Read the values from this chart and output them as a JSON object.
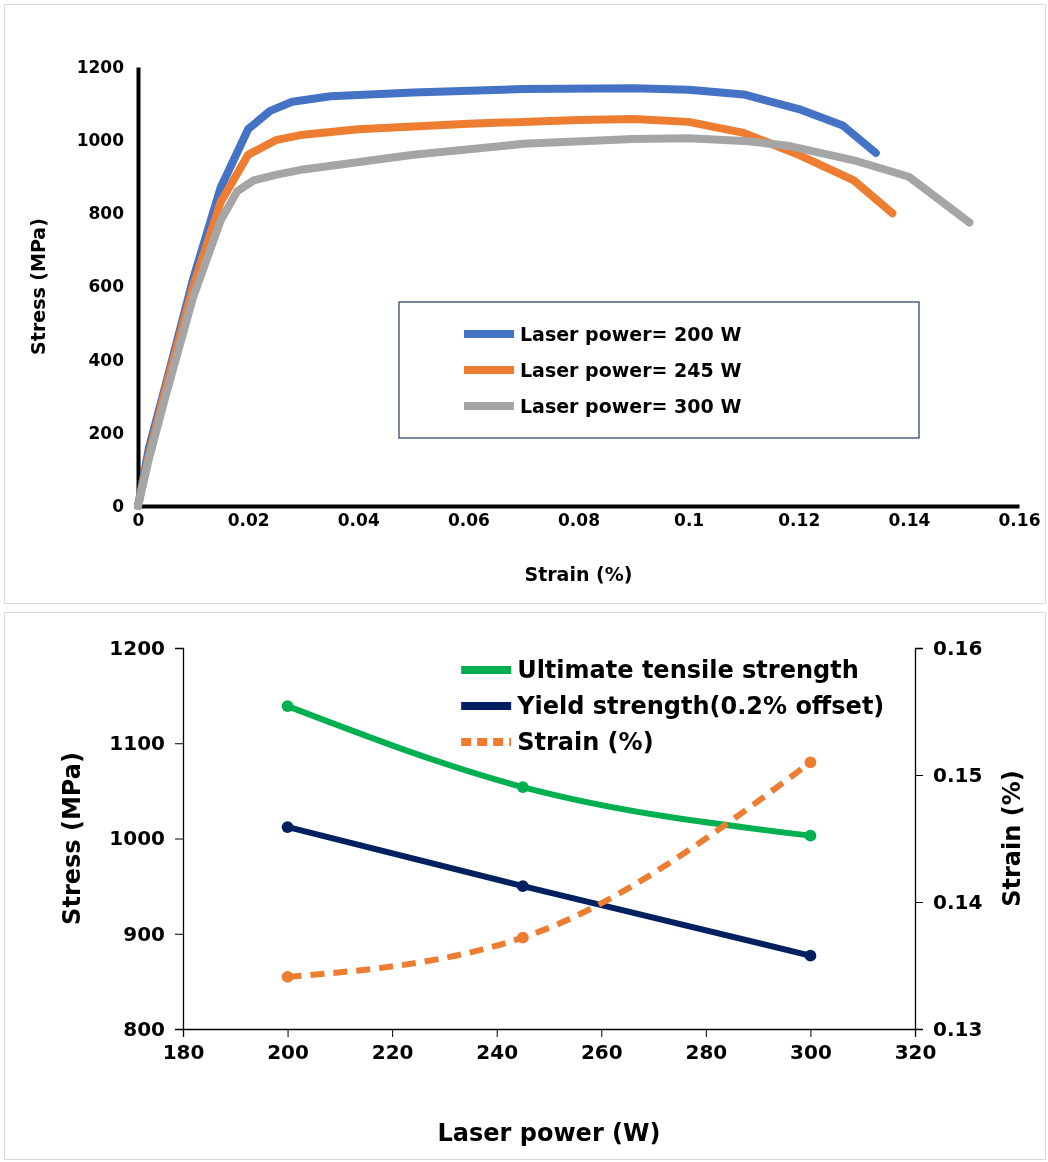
{
  "chart_data": [
    {
      "type": "line",
      "xlabel": "Strain (%)",
      "ylabel": "Stress (MPa)",
      "xlim": [
        0,
        0.16
      ],
      "xticks": [
        0,
        0.02,
        0.04,
        0.06,
        0.08,
        {
          "value": 0.1,
          "label": "0.1"
        },
        0.12,
        0.14,
        0.16
      ],
      "ylim": [
        0,
        1200
      ],
      "yticks": [
        0,
        200,
        400,
        600,
        800,
        1000,
        1200
      ],
      "legend": "right",
      "marker": "none",
      "grid": false,
      "series": [
        {
          "name": "Laser power= 200 W",
          "color": "#4472c4",
          "x": [
            0,
            0.002,
            0.005,
            0.01,
            0.015,
            0.02,
            0.024,
            0.028,
            0.035,
            0.05,
            0.07,
            0.09,
            0.1,
            0.11,
            0.12,
            0.128,
            0.134
          ],
          "values": [
            0,
            160,
            330,
            620,
            870,
            1030,
            1080,
            1105,
            1120,
            1130,
            1140,
            1142,
            1138,
            1125,
            1085,
            1040,
            965
          ]
        },
        {
          "name": "Laser power= 245 W",
          "color": "#ed7d31",
          "x": [
            0,
            0.002,
            0.005,
            0.01,
            0.015,
            0.02,
            0.025,
            0.03,
            0.04,
            0.06,
            0.08,
            0.09,
            0.1,
            0.11,
            0.12,
            0.13,
            0.137
          ],
          "values": [
            0,
            140,
            320,
            600,
            830,
            960,
            1000,
            1015,
            1030,
            1045,
            1055,
            1058,
            1050,
            1020,
            960,
            890,
            800
          ]
        },
        {
          "name": "Laser power= 300 W",
          "color": "#a5a5a5",
          "x": [
            0,
            0.002,
            0.005,
            0.01,
            0.015,
            0.018,
            0.021,
            0.025,
            0.03,
            0.05,
            0.07,
            0.09,
            0.1,
            0.11,
            0.118,
            0.13,
            0.14,
            0.151
          ],
          "values": [
            0,
            130,
            300,
            570,
            780,
            860,
            890,
            905,
            920,
            960,
            990,
            1003,
            1005,
            998,
            985,
            945,
            900,
            775
          ]
        }
      ]
    },
    {
      "type": "line",
      "xlabel": "Laser power (W)",
      "ylabel": "Stress (MPa)",
      "y2label": "Strain (%)",
      "xlim": [
        180,
        320
      ],
      "xticks": [
        180,
        200,
        220,
        240,
        260,
        280,
        300,
        320
      ],
      "ylim": [
        800,
        1200
      ],
      "yticks": [
        800,
        900,
        1000,
        1100,
        1200
      ],
      "y2lim": [
        0.13,
        0.16
      ],
      "y2ticks": [
        0.13,
        0.14,
        0.15,
        0.16
      ],
      "legend": "top right",
      "marker": "circle",
      "grid": false,
      "x": [
        200,
        245,
        300
      ],
      "series": [
        {
          "name": "Ultimate tensile strength",
          "color": "#00b050",
          "values": [
            1139,
            1054,
            1003
          ]
        },
        {
          "name": "Yield strength(0.2% offset)",
          "color": "#002060",
          "values": [
            1012,
            950,
            877
          ]
        },
        {
          "name": "Strain (%)",
          "color": "#ed7d31",
          "values": [
            0.1341,
            0.1372,
            0.151
          ],
          "axis": "y2",
          "line_style": "dashed"
        }
      ]
    }
  ]
}
